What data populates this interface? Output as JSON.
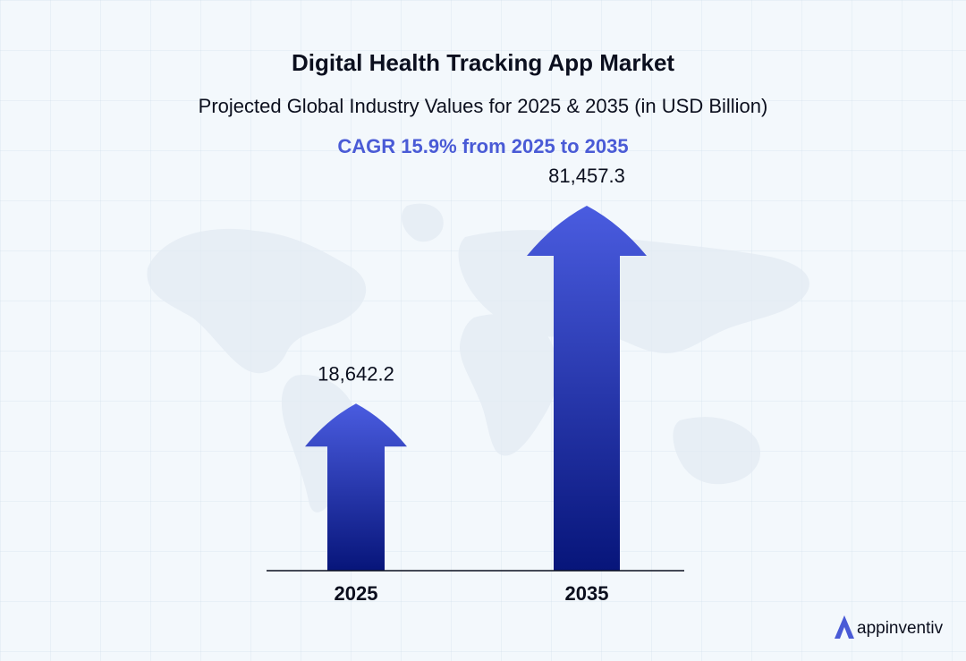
{
  "chart_data": {
    "type": "bar",
    "title": "Digital Health Tracking App Market",
    "subtitle": "Projected Global Industry Values for 2025 & 2035 (in USD Billion)",
    "annotation": "CAGR 15.9% from 2025 to 2035",
    "categories": [
      "2025",
      "2035"
    ],
    "values": [
      18642.2,
      81457.3
    ],
    "value_labels": [
      "18,642.2",
      "81,457.3"
    ],
    "bar_shape": "arrow",
    "grid": false,
    "legend": "none"
  },
  "colors": {
    "accent": "#4a5bd6",
    "bar_top": "#4a5ce0",
    "bar_bottom": "#07157a",
    "text": "#0b0f1e"
  },
  "brand": {
    "name": "appinventiv",
    "icon": "appinventiv-logo-icon"
  }
}
